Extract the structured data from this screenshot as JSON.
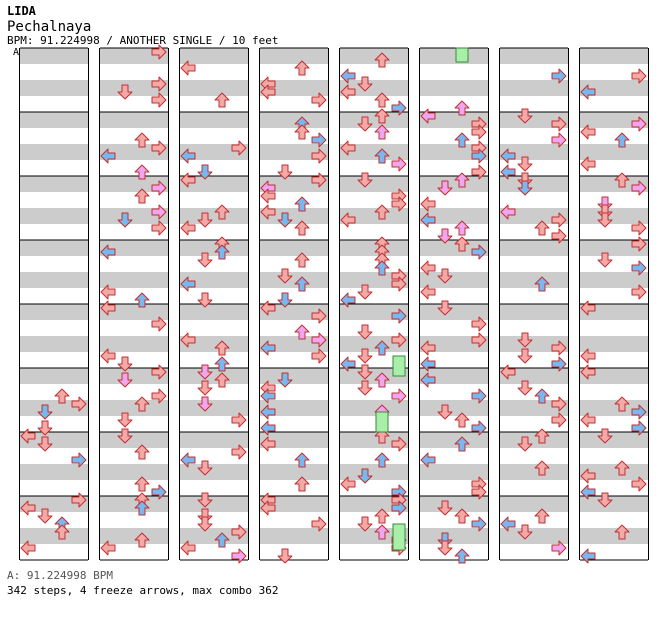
{
  "header": {
    "title": "LIDA",
    "song": "Pechalnaya",
    "meta": "BPM: 91.224998 / ANOTHER SINGLE / 10 feet",
    "bpm_marker": "A"
  },
  "footer": {
    "bpm_line": "A: 91.224998 BPM",
    "stats_line": "342 steps, 4 freeze arrows, max combo 362"
  },
  "colors": {
    "quarter": "#f4a9a9",
    "eighth": "#79b8ef",
    "sixteenth": "#efa6ef",
    "freeze": "#a9eea9",
    "stripe": "#cccccc"
  },
  "chart": {
    "columns": 8,
    "measures_per_column": 8,
    "lanes": [
      "left",
      "down",
      "up",
      "right"
    ]
  }
}
